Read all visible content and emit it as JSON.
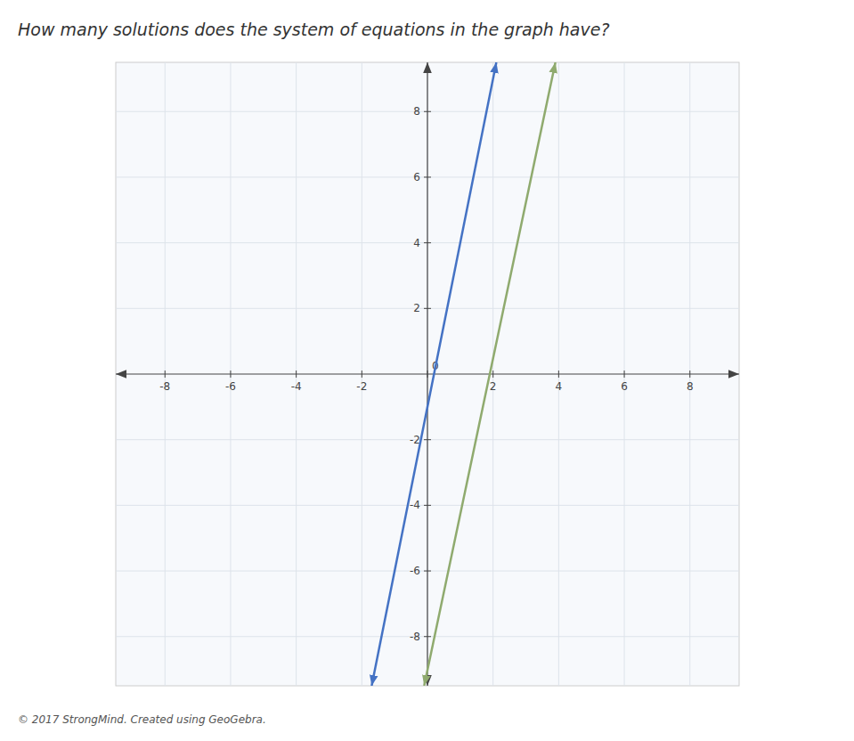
{
  "chart_data": {
    "type": "line",
    "title": "How many solutions does the system of equations in the graph have?",
    "annotations": [
      "© 2017 StrongMind. Created using GeoGebra."
    ],
    "series": [
      {
        "color": "#4472c4",
        "x": [
          -1.7,
          2.1
        ],
        "values": [
          -9.5,
          9.5
        ]
      },
      {
        "color": "#8faa6e",
        "x": [
          -0.1,
          3.9
        ],
        "values": [
          -9.5,
          9.5
        ]
      }
    ],
    "xlim": [
      -9.5,
      9.5
    ],
    "ylim": [
      -9.5,
      9.5
    ],
    "xticks": [
      -8,
      -6,
      -4,
      -2,
      0,
      2,
      4,
      6,
      8
    ],
    "yticks": [
      -8,
      -6,
      -4,
      -2,
      2,
      4,
      6,
      8
    ],
    "grid": true
  }
}
